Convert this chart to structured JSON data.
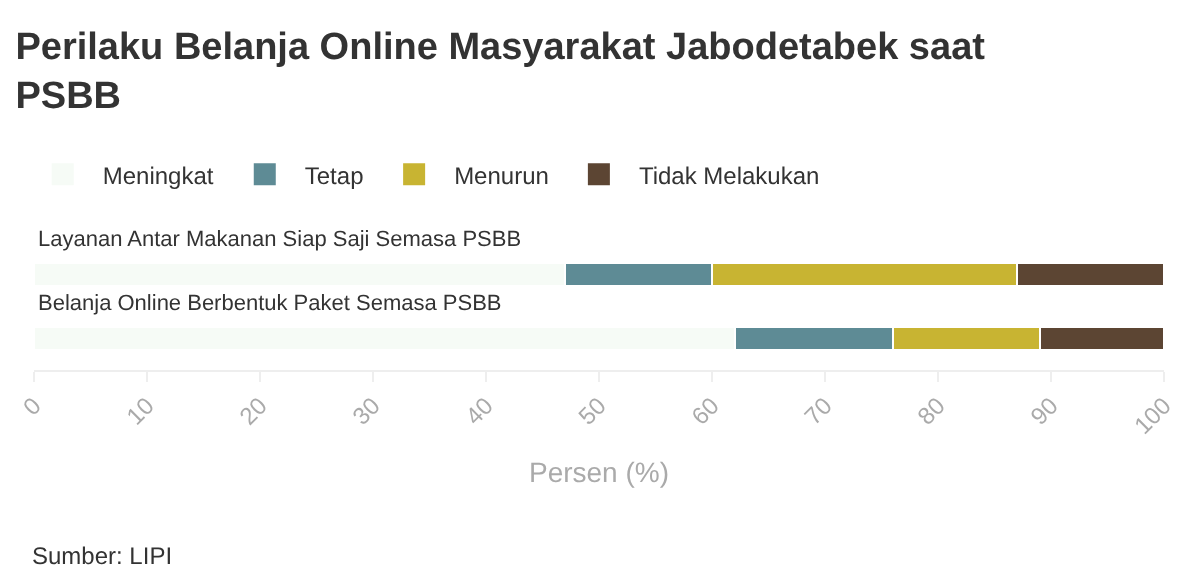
{
  "chart_data": {
    "type": "bar",
    "orientation": "horizontal",
    "stacked": true,
    "title": "Perilaku Belanja Online Masyarakat Jabodetabek saat PSBB",
    "xlabel": "Persen (%)",
    "categories": [
      "Layanan Antar Makanan Siap Saji Semasa PSBB",
      "Belanja Online Berbentuk Paket Semasa PSBB"
    ],
    "series": [
      {
        "name": "Meningkat",
        "color": "#f6fbf6",
        "values": [
          47,
          62
        ]
      },
      {
        "name": "Tetap",
        "color": "#5e8b95",
        "values": [
          13,
          14
        ]
      },
      {
        "name": "Menurun",
        "color": "#c8b432",
        "values": [
          27,
          13
        ]
      },
      {
        "name": "Tidak Melakukan",
        "color": "#5c4533",
        "values": [
          13,
          11
        ]
      }
    ],
    "xlim": [
      0,
      100
    ],
    "xticks": [
      0,
      10,
      20,
      30,
      40,
      50,
      60,
      70,
      80,
      90,
      100
    ],
    "grid": false,
    "legend": "top left",
    "annotations": [
      "Sumber: LIPI"
    ]
  }
}
